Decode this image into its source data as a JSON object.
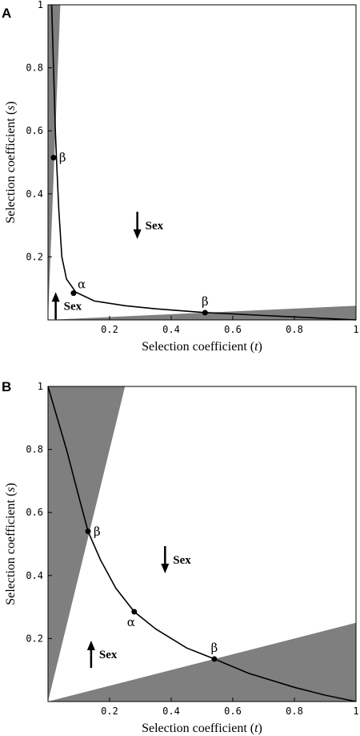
{
  "chart_data": [
    {
      "type": "line",
      "panel": "A",
      "xlabel_prefix": "Selection coefficient (",
      "xlabel_var": "t",
      "xlabel_suffix": ")",
      "ylabel_prefix": "Selection coefficient (",
      "ylabel_var": "s",
      "ylabel_suffix": ")",
      "xlim": [
        0,
        1
      ],
      "ylim": [
        0,
        1
      ],
      "xticks": [
        0.2,
        0.4,
        0.6,
        0.8,
        1
      ],
      "xtick_labels": [
        "0.2",
        "0.4",
        "0.6",
        "0.8",
        "1"
      ],
      "yticks": [
        0.2,
        0.4,
        0.6,
        0.8,
        1
      ],
      "ytick_labels": [
        "0.2",
        "0.4",
        "0.6",
        "0.8",
        "1"
      ],
      "grid": false,
      "shaded_regions": [
        [
          [
            0,
            0
          ],
          [
            0,
            1
          ],
          [
            0.04,
            1
          ]
        ],
        [
          [
            0,
            0
          ],
          [
            1,
            0
          ],
          [
            1,
            0.045
          ]
        ]
      ],
      "curve": [
        [
          0.012,
          1.0
        ],
        [
          0.018,
          0.8
        ],
        [
          0.024,
          0.6
        ],
        [
          0.028,
          0.5
        ],
        [
          0.035,
          0.35
        ],
        [
          0.045,
          0.2
        ],
        [
          0.06,
          0.13
        ],
        [
          0.09,
          0.088
        ],
        [
          0.15,
          0.06
        ],
        [
          0.25,
          0.045
        ],
        [
          0.35,
          0.035
        ],
        [
          0.5,
          0.024
        ],
        [
          0.7,
          0.014
        ],
        [
          0.85,
          0.007
        ],
        [
          1.0,
          0.0
        ]
      ],
      "points": [
        {
          "label": "β",
          "x": 0.018,
          "y": 0.515
        },
        {
          "label": "α",
          "x": 0.083,
          "y": 0.085
        },
        {
          "label": "β",
          "x": 0.51,
          "y": 0.023
        }
      ],
      "annotations": [
        {
          "text": "Sex",
          "direction": "down",
          "x": 0.29,
          "y": 0.3
        },
        {
          "text": "Sex",
          "direction": "up",
          "x": 0.025,
          "y": 0.045
        }
      ]
    },
    {
      "type": "line",
      "panel": "B",
      "xlabel_prefix": "Selection coefficient (",
      "xlabel_var": "t",
      "xlabel_suffix": ")",
      "ylabel_prefix": "Selection coefficient (",
      "ylabel_var": "s",
      "ylabel_suffix": ")",
      "xlim": [
        0,
        1
      ],
      "ylim": [
        0,
        1
      ],
      "xticks": [
        0.2,
        0.4,
        0.6,
        0.8,
        1
      ],
      "xtick_labels": [
        "0.2",
        "0.4",
        "0.6",
        "0.8",
        "1"
      ],
      "yticks": [
        0.2,
        0.4,
        0.6,
        0.8,
        1
      ],
      "ytick_labels": [
        "0.2",
        "0.4",
        "0.6",
        "0.8",
        "1"
      ],
      "grid": false,
      "shaded_regions": [
        [
          [
            0,
            0
          ],
          [
            0,
            1
          ],
          [
            0.25,
            1
          ]
        ],
        [
          [
            0,
            0
          ],
          [
            1,
            0
          ],
          [
            1,
            0.25
          ]
        ]
      ],
      "curve": [
        [
          0.0,
          1.0
        ],
        [
          0.06,
          0.8
        ],
        [
          0.1,
          0.65
        ],
        [
          0.13,
          0.54
        ],
        [
          0.17,
          0.45
        ],
        [
          0.22,
          0.36
        ],
        [
          0.28,
          0.285
        ],
        [
          0.35,
          0.23
        ],
        [
          0.45,
          0.17
        ],
        [
          0.54,
          0.135
        ],
        [
          0.65,
          0.09
        ],
        [
          0.8,
          0.045
        ],
        [
          0.9,
          0.02
        ],
        [
          1.0,
          0.0
        ]
      ],
      "points": [
        {
          "label": "β",
          "x": 0.13,
          "y": 0.54
        },
        {
          "label": "α",
          "x": 0.28,
          "y": 0.285
        },
        {
          "label": "β",
          "x": 0.54,
          "y": 0.135
        }
      ],
      "annotations": [
        {
          "text": "Sex",
          "direction": "down",
          "x": 0.38,
          "y": 0.45
        },
        {
          "text": "Sex",
          "direction": "up",
          "x": 0.14,
          "y": 0.15
        }
      ]
    }
  ],
  "colors": {
    "shade": "#7f7f7f",
    "line": "#000000",
    "background": "#ffffff"
  }
}
